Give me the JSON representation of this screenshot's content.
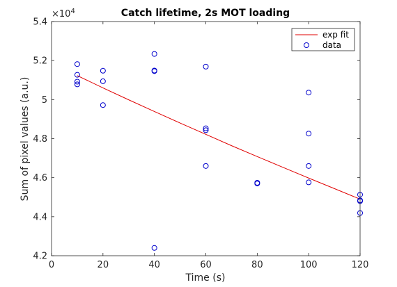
{
  "chart_data": {
    "type": "scatter",
    "title": "Catch lifetime, 2s MOT loading",
    "xlabel": "Time (s)",
    "ylabel": "Sum of pixel values (a.u.)",
    "y_exponent_label": "×10",
    "y_exponent_power": "4",
    "xlim": [
      0,
      120
    ],
    "ylim": [
      4.2,
      5.4
    ],
    "x_ticks": [
      0,
      20,
      40,
      60,
      80,
      100,
      120
    ],
    "x_tick_labels": [
      "0",
      "20",
      "40",
      "60",
      "80",
      "100",
      "120"
    ],
    "y_ticks": [
      4.2,
      4.4,
      4.6,
      4.8,
      5.0,
      5.2,
      5.4
    ],
    "y_tick_labels": [
      "4.2",
      "4.4",
      "4.6",
      "4.8",
      "5",
      "5.2",
      "5.4"
    ],
    "grid": false,
    "legend_position": "top-right",
    "series": [
      {
        "name": "exp fit",
        "kind": "line",
        "color": "#e00000",
        "x": [
          10,
          20,
          30,
          40,
          50,
          60,
          70,
          80,
          90,
          100,
          110,
          120
        ],
        "y": [
          5.123,
          5.06,
          4.999,
          4.939,
          4.88,
          4.822,
          4.764,
          4.708,
          4.653,
          4.598,
          4.544,
          4.49
        ]
      },
      {
        "name": "data",
        "kind": "markers",
        "marker": "circle",
        "color": "#0000cc",
        "x": [
          10,
          10,
          10,
          10,
          20,
          20,
          20,
          40,
          40,
          40,
          40,
          60,
          60,
          60,
          60,
          80,
          80,
          100,
          100,
          100,
          100,
          120,
          120,
          120,
          120
        ],
        "y": [
          5.182,
          5.127,
          5.092,
          5.078,
          5.148,
          5.094,
          4.972,
          5.234,
          5.149,
          5.146,
          4.24,
          5.169,
          4.853,
          4.843,
          4.66,
          4.574,
          4.57,
          5.036,
          4.826,
          4.66,
          4.576,
          4.513,
          4.484,
          4.48,
          4.419
        ]
      }
    ]
  }
}
